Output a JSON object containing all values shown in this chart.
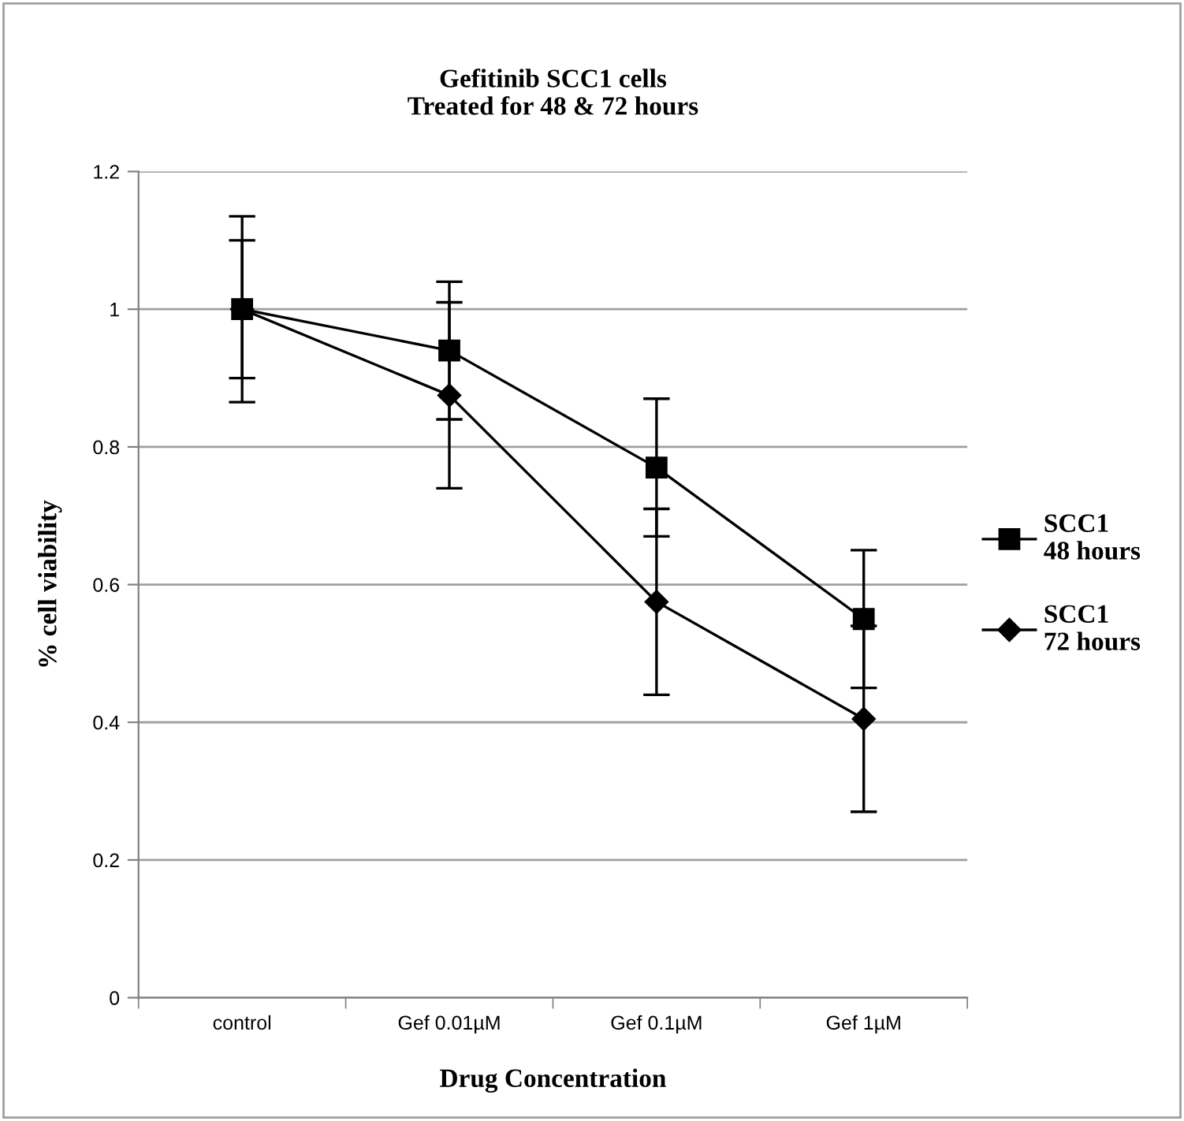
{
  "chart_data": {
    "type": "line",
    "title": "Gefitinib SCC1 cells\nTreated for 48 & 72 hours",
    "xlabel": "Drug Concentration",
    "ylabel": "% cell viability",
    "categories": [
      "control",
      "Gef 0.01µM",
      "Gef 0.1µM",
      "Gef 1µM"
    ],
    "series": [
      {
        "name": "SCC1\n48 hours",
        "color": "#000000",
        "marker": "square",
        "values": [
          1.0,
          0.94,
          0.77,
          0.55
        ],
        "errors": [
          0.1,
          0.1,
          0.1,
          0.1
        ]
      },
      {
        "name": "SCC1\n72 hours",
        "color": "#000000",
        "marker": "diamond",
        "values": [
          1.0,
          0.875,
          0.575,
          0.405
        ],
        "errors": [
          0.135,
          0.135,
          0.135,
          0.135
        ]
      }
    ],
    "ylim": [
      0,
      1.2
    ],
    "yticks": [
      0,
      0.2,
      0.4,
      0.6,
      0.8,
      1,
      1.2
    ],
    "grid": "y",
    "legend": "right",
    "line_style": "solid"
  }
}
